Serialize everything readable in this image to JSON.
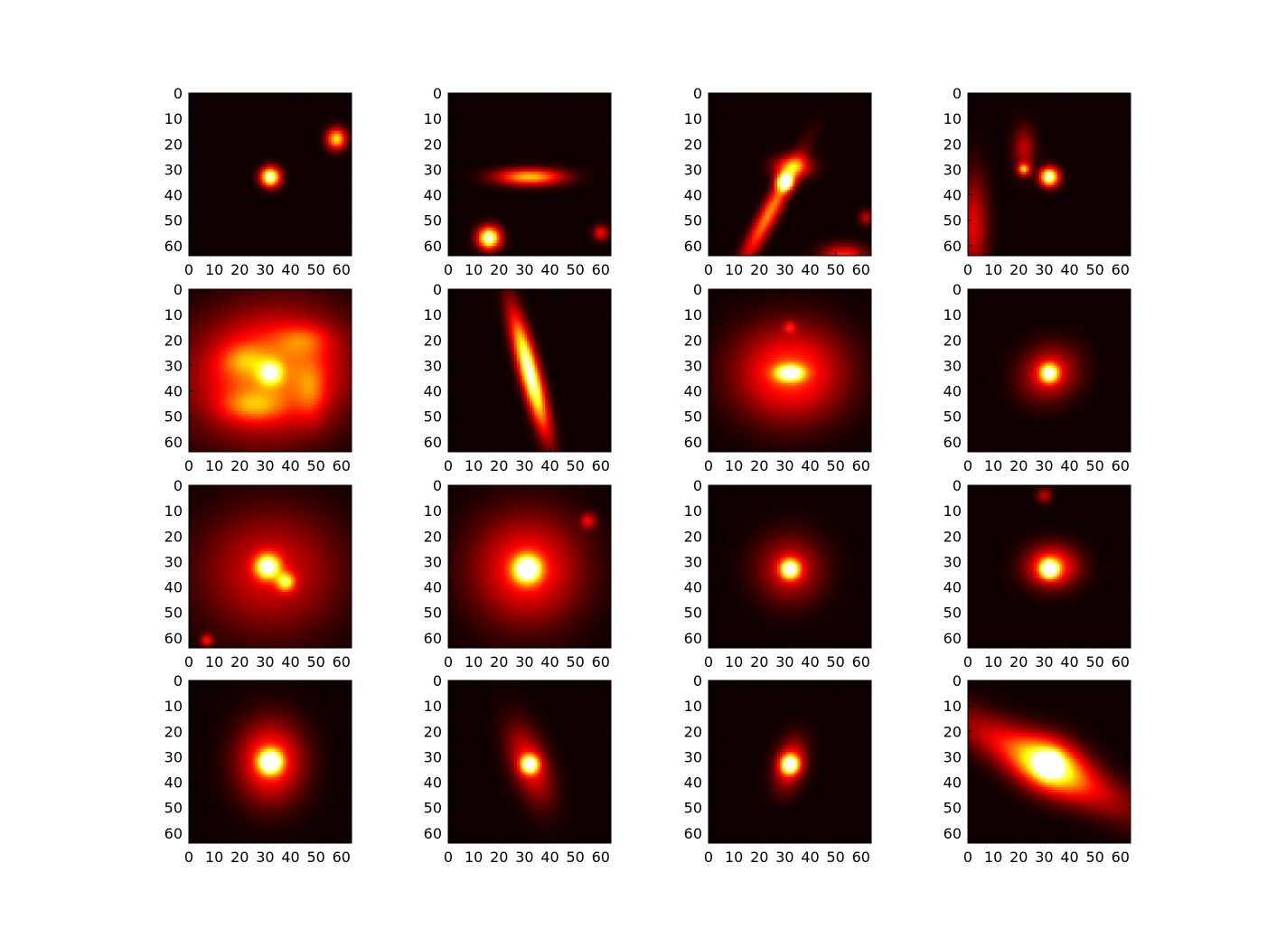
{
  "figure": {
    "rows": 4,
    "cols": 4,
    "colormap": "hot",
    "background": "#ffffff"
  },
  "chart_data": [
    {
      "type": "heatmap",
      "extent": [
        0,
        64
      ],
      "xticks": [
        0,
        10,
        20,
        30,
        40,
        50,
        60
      ],
      "yticks": [
        0,
        10,
        20,
        30,
        40,
        50,
        60
      ],
      "sources": [
        {
          "x": 32,
          "y": 33,
          "amp": 1.0,
          "sx": 2.6,
          "sy": 2.6,
          "rot": 0
        },
        {
          "x": 58,
          "y": 18,
          "amp": 0.7,
          "sx": 2.6,
          "sy": 2.8,
          "rot": 0
        }
      ]
    },
    {
      "type": "heatmap",
      "extent": [
        0,
        64
      ],
      "xticks": [
        0,
        10,
        20,
        30,
        40,
        50,
        60
      ],
      "yticks": [
        0,
        10,
        20,
        30,
        40,
        50,
        60
      ],
      "sources": [
        {
          "x": 32,
          "y": 33,
          "amp": 0.65,
          "sx": 9,
          "sy": 2.2,
          "rot": 0
        },
        {
          "x": 16,
          "y": 57,
          "amp": 1.0,
          "sx": 3,
          "sy": 3,
          "rot": 0
        },
        {
          "x": 60,
          "y": 55,
          "amp": 0.35,
          "sx": 2,
          "sy": 2,
          "rot": 0
        }
      ]
    },
    {
      "type": "heatmap",
      "extent": [
        0,
        64
      ],
      "xticks": [
        0,
        10,
        20,
        30,
        40,
        50,
        60
      ],
      "yticks": [
        0,
        10,
        20,
        30,
        40,
        50,
        60
      ],
      "sources": [
        {
          "x": 30,
          "y": 35,
          "amp": 1.0,
          "sx": 2.2,
          "sy": 2.2,
          "rot": 0
        },
        {
          "x": 24,
          "y": 47,
          "amp": 0.55,
          "sx": 16,
          "sy": 2.4,
          "rot": -62
        },
        {
          "x": 33,
          "y": 29,
          "amp": 0.5,
          "sx": 5,
          "sy": 3,
          "rot": 0
        },
        {
          "x": 53,
          "y": 64,
          "amp": 0.4,
          "sx": 6,
          "sy": 3,
          "rot": 0
        },
        {
          "x": 62,
          "y": 49,
          "amp": 0.25,
          "sx": 2,
          "sy": 2,
          "rot": 0
        }
      ]
    },
    {
      "type": "heatmap",
      "extent": [
        0,
        64
      ],
      "xticks": [
        0,
        10,
        20,
        30,
        40,
        50,
        60
      ],
      "yticks": [
        0,
        10,
        20,
        30,
        40,
        50,
        60
      ],
      "sources": [
        {
          "x": 32,
          "y": 33,
          "amp": 1.0,
          "sx": 2.5,
          "sy": 2.5,
          "rot": 0
        },
        {
          "x": 22,
          "y": 30,
          "amp": 0.6,
          "sx": 1.6,
          "sy": 1.6,
          "rot": 0
        },
        {
          "x": 22,
          "y": 22,
          "amp": 0.25,
          "sx": 3,
          "sy": 6,
          "rot": 0
        },
        {
          "x": 2,
          "y": 52,
          "amp": 0.3,
          "sx": 4,
          "sy": 14,
          "rot": 0
        }
      ]
    },
    {
      "type": "heatmap",
      "extent": [
        0,
        64
      ],
      "xticks": [
        0,
        10,
        20,
        30,
        40,
        50,
        60
      ],
      "yticks": [
        0,
        10,
        20,
        30,
        40,
        50,
        60
      ],
      "sources": [
        {
          "x": 32,
          "y": 33,
          "amp": 0.55,
          "sx": 3,
          "sy": 3,
          "rot": 0
        },
        {
          "x": 32,
          "y": 33,
          "amp": 0.55,
          "sx": 21,
          "sy": 17,
          "rot": -10
        },
        {
          "x": 22,
          "y": 28,
          "amp": 0.2,
          "sx": 6,
          "sy": 4,
          "rot": 0
        },
        {
          "x": 45,
          "y": 20,
          "amp": 0.2,
          "sx": 7,
          "sy": 4,
          "rot": 0
        },
        {
          "x": 25,
          "y": 46,
          "amp": 0.25,
          "sx": 8,
          "sy": 4,
          "rot": 0
        },
        {
          "x": 48,
          "y": 40,
          "amp": 0.2,
          "sx": 4,
          "sy": 8,
          "rot": 0
        }
      ]
    },
    {
      "type": "heatmap",
      "extent": [
        0,
        64
      ],
      "xticks": [
        0,
        10,
        20,
        30,
        40,
        50,
        60
      ],
      "yticks": [
        0,
        10,
        20,
        30,
        40,
        50,
        60
      ],
      "sources": [
        {
          "x": 32,
          "y": 33,
          "amp": 1.0,
          "sx": 16,
          "sy": 2.6,
          "rot": 75
        }
      ]
    },
    {
      "type": "heatmap",
      "extent": [
        0,
        64
      ],
      "xticks": [
        0,
        10,
        20,
        30,
        40,
        50,
        60
      ],
      "yticks": [
        0,
        10,
        20,
        30,
        40,
        50,
        60
      ],
      "sources": [
        {
          "x": 32,
          "y": 33,
          "amp": 0.8,
          "sx": 3.8,
          "sy": 2.2,
          "rot": 0
        },
        {
          "x": 32,
          "y": 33,
          "amp": 0.45,
          "sx": 15,
          "sy": 13,
          "rot": 0
        },
        {
          "x": 32,
          "y": 15,
          "amp": 0.25,
          "sx": 1.6,
          "sy": 1.6,
          "rot": 0
        }
      ]
    },
    {
      "type": "heatmap",
      "extent": [
        0,
        64
      ],
      "xticks": [
        0,
        10,
        20,
        30,
        40,
        50,
        60
      ],
      "yticks": [
        0,
        10,
        20,
        30,
        40,
        50,
        60
      ],
      "sources": [
        {
          "x": 32,
          "y": 33,
          "amp": 0.8,
          "sx": 2.4,
          "sy": 2.4,
          "rot": 0
        },
        {
          "x": 32,
          "y": 33,
          "amp": 0.35,
          "sx": 8,
          "sy": 7,
          "rot": -30
        }
      ]
    },
    {
      "type": "heatmap",
      "extent": [
        0,
        64
      ],
      "xticks": [
        0,
        10,
        20,
        30,
        40,
        50,
        60
      ],
      "yticks": [
        0,
        10,
        20,
        30,
        40,
        50,
        60
      ],
      "sources": [
        {
          "x": 31,
          "y": 32,
          "amp": 0.85,
          "sx": 3.3,
          "sy": 3.3,
          "rot": 0
        },
        {
          "x": 38,
          "y": 38,
          "amp": 0.6,
          "sx": 2.4,
          "sy": 2.4,
          "rot": 0
        },
        {
          "x": 32,
          "y": 34,
          "amp": 0.3,
          "sx": 19,
          "sy": 17,
          "rot": 0
        },
        {
          "x": 7,
          "y": 61,
          "amp": 0.35,
          "sx": 1.6,
          "sy": 1.6,
          "rot": 0
        }
      ]
    },
    {
      "type": "heatmap",
      "extent": [
        0,
        64
      ],
      "xticks": [
        0,
        10,
        20,
        30,
        40,
        50,
        60
      ],
      "yticks": [
        0,
        10,
        20,
        30,
        40,
        50,
        60
      ],
      "sources": [
        {
          "x": 31,
          "y": 33,
          "amp": 0.95,
          "sx": 3.6,
          "sy": 3.6,
          "rot": 0
        },
        {
          "x": 31,
          "y": 33,
          "amp": 0.4,
          "sx": 15,
          "sy": 15,
          "rot": 0
        },
        {
          "x": 55,
          "y": 14,
          "amp": 0.3,
          "sx": 2,
          "sy": 2,
          "rot": 0
        }
      ]
    },
    {
      "type": "heatmap",
      "extent": [
        0,
        64
      ],
      "xticks": [
        0,
        10,
        20,
        30,
        40,
        50,
        60
      ],
      "yticks": [
        0,
        10,
        20,
        30,
        40,
        50,
        60
      ],
      "sources": [
        {
          "x": 32,
          "y": 33,
          "amp": 0.9,
          "sx": 2.6,
          "sy": 2.6,
          "rot": 0
        },
        {
          "x": 32,
          "y": 33,
          "amp": 0.3,
          "sx": 9,
          "sy": 9,
          "rot": 0
        }
      ]
    },
    {
      "type": "heatmap",
      "extent": [
        0,
        64
      ],
      "xticks": [
        0,
        10,
        20,
        30,
        40,
        50,
        60
      ],
      "yticks": [
        0,
        10,
        20,
        30,
        40,
        50,
        60
      ],
      "sources": [
        {
          "x": 32,
          "y": 33,
          "amp": 0.9,
          "sx": 2.4,
          "sy": 2.4,
          "rot": 0
        },
        {
          "x": 33,
          "y": 32,
          "amp": 0.5,
          "sx": 7,
          "sy": 5.5,
          "rot": 0
        },
        {
          "x": 30,
          "y": 4,
          "amp": 0.25,
          "sx": 2,
          "sy": 2,
          "rot": 0
        }
      ]
    },
    {
      "type": "heatmap",
      "extent": [
        0,
        64
      ],
      "xticks": [
        0,
        10,
        20,
        30,
        40,
        50,
        60
      ],
      "yticks": [
        0,
        10,
        20,
        30,
        40,
        50,
        60
      ],
      "sources": [
        {
          "x": 32,
          "y": 32,
          "amp": 1.0,
          "sx": 3,
          "sy": 3,
          "rot": 0
        },
        {
          "x": 32,
          "y": 32,
          "amp": 0.45,
          "sx": 9,
          "sy": 11,
          "rot": 0
        }
      ]
    },
    {
      "type": "heatmap",
      "extent": [
        0,
        64
      ],
      "xticks": [
        0,
        10,
        20,
        30,
        40,
        50,
        60
      ],
      "yticks": [
        0,
        10,
        20,
        30,
        40,
        50,
        60
      ],
      "sources": [
        {
          "x": 32,
          "y": 33,
          "amp": 0.9,
          "sx": 2.4,
          "sy": 2.4,
          "rot": 0
        },
        {
          "x": 32,
          "y": 33,
          "amp": 0.35,
          "sx": 11,
          "sy": 5,
          "rot": 70
        }
      ]
    },
    {
      "type": "heatmap",
      "extent": [
        0,
        64
      ],
      "xticks": [
        0,
        10,
        20,
        30,
        40,
        50,
        60
      ],
      "yticks": [
        0,
        10,
        20,
        30,
        40,
        50,
        60
      ],
      "sources": [
        {
          "x": 32,
          "y": 33,
          "amp": 0.9,
          "sx": 2.4,
          "sy": 2.4,
          "rot": 0
        },
        {
          "x": 32,
          "y": 33,
          "amp": 0.4,
          "sx": 4,
          "sy": 7,
          "rot": 15
        }
      ]
    },
    {
      "type": "heatmap",
      "extent": [
        0,
        64
      ],
      "xticks": [
        0,
        10,
        20,
        30,
        40,
        50,
        60
      ],
      "yticks": [
        0,
        10,
        20,
        30,
        40,
        50,
        60
      ],
      "sources": [
        {
          "x": 32,
          "y": 33,
          "amp": 0.9,
          "sx": 3,
          "sy": 3,
          "rot": 0
        },
        {
          "x": 32,
          "y": 33,
          "amp": 0.55,
          "sx": 9,
          "sy": 7,
          "rot": 25
        },
        {
          "x": 30,
          "y": 33,
          "amp": 0.45,
          "sx": 26,
          "sy": 6,
          "rot": 28
        }
      ]
    }
  ]
}
